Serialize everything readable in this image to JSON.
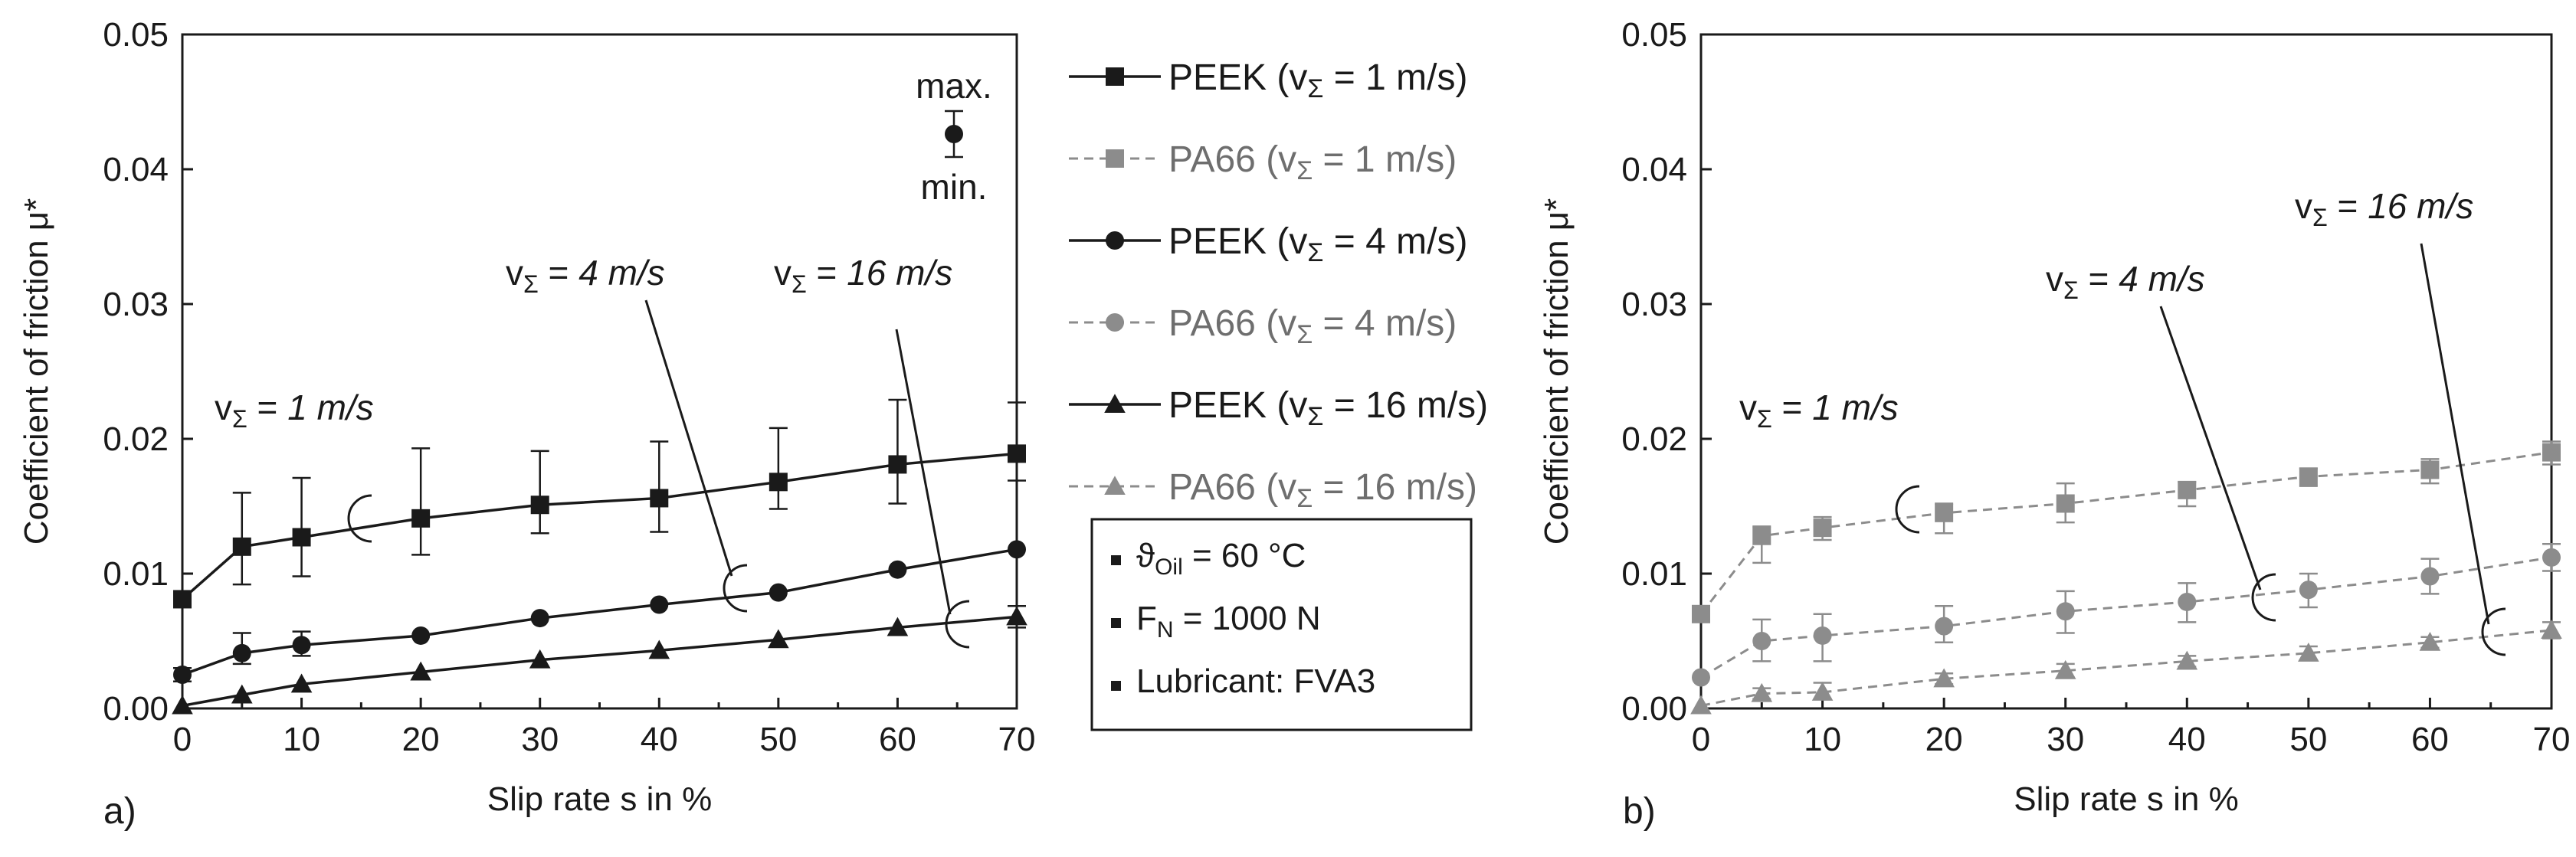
{
  "chart_data": [
    {
      "panel": "a)",
      "type": "line",
      "xlabel": "Slip rate s in %",
      "ylabel": "Coefficient of friction μ*",
      "xlim": [
        0,
        70
      ],
      "ylim": [
        0,
        0.05
      ],
      "xticks": [
        "0",
        "10",
        "20",
        "30",
        "40",
        "50",
        "60",
        "70"
      ],
      "yticks": [
        "0.00",
        "0.01",
        "0.02",
        "0.03",
        "0.04",
        "0.05"
      ],
      "series": [
        {
          "name": "PEEK (v_Σ = 1 m/s)",
          "marker": "square",
          "style": "solid",
          "color": "#1a1a1a",
          "x": [
            0,
            5,
            10,
            20,
            30,
            40,
            50,
            60,
            70
          ],
          "y": [
            0.0081,
            0.012,
            0.0127,
            0.0141,
            0.0151,
            0.0156,
            0.0168,
            0.0181,
            0.0189
          ],
          "err_low": [
            0.0081,
            0.0092,
            0.0098,
            0.0114,
            0.013,
            0.0131,
            0.0148,
            0.0152,
            0.0169
          ],
          "err_high": [
            0.0081,
            0.016,
            0.0171,
            0.0193,
            0.0191,
            0.0198,
            0.0208,
            0.0229,
            0.0227
          ]
        },
        {
          "name": "PEEK (v_Σ = 4 m/s)",
          "marker": "circle",
          "style": "solid",
          "color": "#1a1a1a",
          "x": [
            0,
            5,
            10,
            20,
            30,
            40,
            50,
            60,
            70
          ],
          "y": [
            0.0025,
            0.0041,
            0.0047,
            0.0054,
            0.0067,
            0.0077,
            0.0086,
            0.0103,
            0.0118
          ],
          "err_low": [
            0.002,
            0.0033,
            0.0039,
            0.0054,
            0.0067,
            0.0077,
            0.0086,
            0.0103,
            0.0118
          ],
          "err_high": [
            0.003,
            0.0056,
            0.0057,
            0.0054,
            0.0067,
            0.0077,
            0.0086,
            0.0103,
            0.0118
          ]
        },
        {
          "name": "PEEK (v_Σ = 16 m/s)",
          "marker": "triangle",
          "style": "solid",
          "color": "#1a1a1a",
          "x": [
            0,
            5,
            10,
            20,
            30,
            40,
            50,
            60,
            70
          ],
          "y": [
            0.0002,
            0.001,
            0.0018,
            0.0027,
            0.0036,
            0.0043,
            0.0051,
            0.006,
            0.0068
          ],
          "err_low": [
            0.0002,
            0.001,
            0.0018,
            0.0027,
            0.0036,
            0.0043,
            0.0051,
            0.006,
            0.006
          ],
          "err_high": [
            0.0002,
            0.001,
            0.0018,
            0.0027,
            0.0036,
            0.0043,
            0.0051,
            0.006,
            0.0076
          ]
        }
      ],
      "annotations": [
        {
          "label_prefix": "v",
          "label_sub": "Σ",
          "label_rest": " = ",
          "label_italic": "1 m/s"
        },
        {
          "label_prefix": "v",
          "label_sub": "Σ",
          "label_rest": " = ",
          "label_italic": "4 m/s"
        },
        {
          "label_prefix": "v",
          "label_sub": "Σ",
          "label_rest": " = ",
          "label_italic": "16 m/s"
        }
      ],
      "errorbar_key": {
        "max": "max.",
        "min": "min."
      }
    },
    {
      "panel": "b)",
      "type": "line",
      "xlabel": "Slip rate s in %",
      "ylabel": "Coefficient of friction μ*",
      "xlim": [
        0,
        70
      ],
      "ylim": [
        0,
        0.05
      ],
      "xticks": [
        "0",
        "10",
        "20",
        "30",
        "40",
        "50",
        "60",
        "70"
      ],
      "yticks": [
        "0.00",
        "0.01",
        "0.02",
        "0.03",
        "0.04",
        "0.05"
      ],
      "series": [
        {
          "name": "PA66 (v_Σ = 1 m/s)",
          "marker": "square",
          "style": "dashed",
          "color": "#8c8c8c",
          "x": [
            0,
            5,
            10,
            20,
            30,
            40,
            50,
            60,
            70
          ],
          "y": [
            0.007,
            0.0128,
            0.0134,
            0.0145,
            0.0152,
            0.0162,
            0.0172,
            0.0177,
            0.019
          ],
          "err_low": [
            0.007,
            0.0108,
            0.0125,
            0.013,
            0.0138,
            0.015,
            0.0165,
            0.0167,
            0.0181
          ],
          "err_high": [
            0.007,
            0.0135,
            0.0142,
            0.0152,
            0.0167,
            0.0168,
            0.0178,
            0.0185,
            0.0198
          ]
        },
        {
          "name": "PA66 (v_Σ = 4 m/s)",
          "marker": "circle",
          "style": "dashed",
          "color": "#8c8c8c",
          "x": [
            0,
            5,
            10,
            20,
            30,
            40,
            50,
            60,
            70
          ],
          "y": [
            0.0023,
            0.005,
            0.0054,
            0.0061,
            0.0072,
            0.0079,
            0.0088,
            0.0098,
            0.0112
          ],
          "err_low": [
            0.0023,
            0.0035,
            0.0035,
            0.0049,
            0.0056,
            0.0064,
            0.0075,
            0.0085,
            0.0102
          ],
          "err_high": [
            0.0023,
            0.0066,
            0.007,
            0.0076,
            0.0087,
            0.0093,
            0.01,
            0.0111,
            0.0122
          ]
        },
        {
          "name": "PA66 (v_Σ = 16 m/s)",
          "marker": "triangle",
          "style": "dashed",
          "color": "#8c8c8c",
          "x": [
            0,
            5,
            10,
            20,
            30,
            40,
            50,
            60,
            70
          ],
          "y": [
            0.0002,
            0.0011,
            0.0012,
            0.0022,
            0.0028,
            0.0035,
            0.0041,
            0.0049,
            0.0058
          ],
          "err_low": [
            0.0002,
            0.0007,
            0.0007,
            0.0018,
            0.0023,
            0.0031,
            0.0036,
            0.0045,
            0.0052
          ],
          "err_high": [
            0.0002,
            0.0015,
            0.0019,
            0.0026,
            0.0033,
            0.0039,
            0.0046,
            0.0053,
            0.0064
          ]
        }
      ],
      "annotations": [
        {
          "label_prefix": "v",
          "label_sub": "Σ",
          "label_rest": " = ",
          "label_italic": "1 m/s"
        },
        {
          "label_prefix": "v",
          "label_sub": "Σ",
          "label_rest": " = ",
          "label_italic": "4 m/s"
        },
        {
          "label_prefix": "v",
          "label_sub": "Σ",
          "label_rest": " = ",
          "label_italic": "16 m/s"
        }
      ]
    }
  ],
  "legend": {
    "items": [
      {
        "material": "PEEK",
        "speed": "1 m/s",
        "marker": "square",
        "style": "solid",
        "color": "#1a1a1a"
      },
      {
        "material": "PA66",
        "speed": "1 m/s",
        "marker": "square",
        "style": "dashed",
        "color": "#8c8c8c"
      },
      {
        "material": "PEEK",
        "speed": "4 m/s",
        "marker": "circle",
        "style": "solid",
        "color": "#1a1a1a"
      },
      {
        "material": "PA66",
        "speed": "4 m/s",
        "marker": "circle",
        "style": "dashed",
        "color": "#8c8c8c"
      },
      {
        "material": "PEEK",
        "speed": "16 m/s",
        "marker": "triangle",
        "style": "solid",
        "color": "#1a1a1a"
      },
      {
        "material": "PA66",
        "speed": "16 m/s",
        "marker": "triangle",
        "style": "dashed",
        "color": "#8c8c8c"
      }
    ],
    "v_symbol": "v",
    "v_sub": "Σ"
  },
  "conditions": {
    "items": [
      {
        "symbol": "ϑ",
        "sub": "Oil",
        "text": " = 60 °C"
      },
      {
        "symbol": "F",
        "sub": "N",
        "text": " = 1000 N"
      },
      {
        "symbol": "",
        "sub": "",
        "text": "Lubricant: FVA3"
      }
    ]
  }
}
